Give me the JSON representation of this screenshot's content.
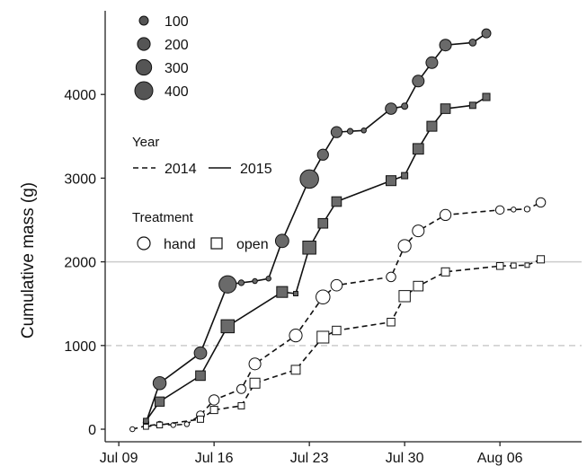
{
  "chart_data": {
    "type": "scatter",
    "title": "",
    "xlabel": "",
    "ylabel": "Cumulative mass (g)",
    "xlim": [
      "2015-07-08",
      "2015-08-12"
    ],
    "ylim": [
      -150,
      5000
    ],
    "x_ticks": [
      {
        "date": "2015-07-09",
        "label": "Jul 09"
      },
      {
        "date": "2015-07-16",
        "label": "Jul 16"
      },
      {
        "date": "2015-07-23",
        "label": "Jul 23"
      },
      {
        "date": "2015-07-30",
        "label": "Jul 30"
      },
      {
        "date": "2015-08-06",
        "label": "Aug 06"
      }
    ],
    "y_ticks": [
      0,
      1000,
      2000,
      3000,
      4000
    ],
    "reference_lines": [
      {
        "y": 1000,
        "style": "dashed",
        "color": "#cccccc"
      },
      {
        "y": 2000,
        "style": "solid",
        "color": "#cccccc"
      }
    ],
    "legend": {
      "position": "top-left",
      "size_legend": [
        {
          "value": 100,
          "label": "100"
        },
        {
          "value": 200,
          "label": "200"
        },
        {
          "value": 300,
          "label": "300"
        },
        {
          "value": 400,
          "label": "400"
        }
      ],
      "year_title": "Year",
      "year_items": [
        {
          "label": "2014",
          "style": "dashed"
        },
        {
          "label": "2015",
          "style": "solid"
        }
      ],
      "treatment_title": "Treatment",
      "treatment_items": [
        {
          "label": "hand",
          "marker": "circle"
        },
        {
          "label": "open",
          "marker": "square"
        }
      ]
    },
    "series": [
      {
        "year": "2015",
        "treatment": "hand",
        "line": "solid",
        "marker": "circle",
        "fill": "#6a6a6a",
        "points": [
          {
            "x": "2015-07-11",
            "y": 80,
            "size": 40
          },
          {
            "x": "2015-07-12",
            "y": 550,
            "size": 210
          },
          {
            "x": "2015-07-15",
            "y": 910,
            "size": 190
          },
          {
            "x": "2015-07-17",
            "y": 1730,
            "size": 370
          },
          {
            "x": "2015-07-18",
            "y": 1750,
            "size": 40
          },
          {
            "x": "2015-07-19",
            "y": 1770,
            "size": 30
          },
          {
            "x": "2015-07-20",
            "y": 1800,
            "size": 30
          },
          {
            "x": "2015-07-21",
            "y": 2250,
            "size": 220
          },
          {
            "x": "2015-07-23",
            "y": 2990,
            "size": 420
          },
          {
            "x": "2015-07-24",
            "y": 3280,
            "size": 150
          },
          {
            "x": "2015-07-25",
            "y": 3550,
            "size": 150
          },
          {
            "x": "2015-07-26",
            "y": 3560,
            "size": 40
          },
          {
            "x": "2015-07-27",
            "y": 3570,
            "size": 30
          },
          {
            "x": "2015-07-29",
            "y": 3830,
            "size": 160
          },
          {
            "x": "2015-07-30",
            "y": 3860,
            "size": 50
          },
          {
            "x": "2015-07-31",
            "y": 4160,
            "size": 170
          },
          {
            "x": "2015-08-01",
            "y": 4380,
            "size": 170
          },
          {
            "x": "2015-08-02",
            "y": 4590,
            "size": 170
          },
          {
            "x": "2015-08-04",
            "y": 4620,
            "size": 60
          },
          {
            "x": "2015-08-05",
            "y": 4730,
            "size": 100
          }
        ]
      },
      {
        "year": "2015",
        "treatment": "open",
        "line": "solid",
        "marker": "square",
        "fill": "#6a6a6a",
        "points": [
          {
            "x": "2015-07-11",
            "y": 100,
            "size": 40
          },
          {
            "x": "2015-07-12",
            "y": 330,
            "size": 130
          },
          {
            "x": "2015-07-15",
            "y": 640,
            "size": 140
          },
          {
            "x": "2015-07-17",
            "y": 1230,
            "size": 260
          },
          {
            "x": "2015-07-21",
            "y": 1640,
            "size": 180
          },
          {
            "x": "2015-07-22",
            "y": 1620,
            "size": 30
          },
          {
            "x": "2015-07-23",
            "y": 2170,
            "size": 260
          },
          {
            "x": "2015-07-24",
            "y": 2460,
            "size": 140
          },
          {
            "x": "2015-07-25",
            "y": 2720,
            "size": 140
          },
          {
            "x": "2015-07-29",
            "y": 2970,
            "size": 150
          },
          {
            "x": "2015-07-30",
            "y": 3030,
            "size": 60
          },
          {
            "x": "2015-07-31",
            "y": 3350,
            "size": 170
          },
          {
            "x": "2015-08-01",
            "y": 3620,
            "size": 150
          },
          {
            "x": "2015-08-02",
            "y": 3830,
            "size": 140
          },
          {
            "x": "2015-08-04",
            "y": 3870,
            "size": 60
          },
          {
            "x": "2015-08-05",
            "y": 3970,
            "size": 80
          }
        ]
      },
      {
        "year": "2014",
        "treatment": "hand",
        "line": "dashed",
        "marker": "circle",
        "fill": "#ffffff",
        "points": [
          {
            "x": "2015-07-10",
            "y": 0,
            "size": 30
          },
          {
            "x": "2015-07-11",
            "y": 40,
            "size": 30
          },
          {
            "x": "2015-07-12",
            "y": 60,
            "size": 40
          },
          {
            "x": "2015-07-13",
            "y": 50,
            "size": 30
          },
          {
            "x": "2015-07-14",
            "y": 60,
            "size": 30
          },
          {
            "x": "2015-07-15",
            "y": 170,
            "size": 80
          },
          {
            "x": "2015-07-16",
            "y": 350,
            "size": 130
          },
          {
            "x": "2015-07-18",
            "y": 480,
            "size": 100
          },
          {
            "x": "2015-07-19",
            "y": 780,
            "size": 170
          },
          {
            "x": "2015-07-22",
            "y": 1120,
            "size": 200
          },
          {
            "x": "2015-07-24",
            "y": 1580,
            "size": 240
          },
          {
            "x": "2015-07-25",
            "y": 1720,
            "size": 160
          },
          {
            "x": "2015-07-29",
            "y": 1820,
            "size": 110
          },
          {
            "x": "2015-07-30",
            "y": 2190,
            "size": 200
          },
          {
            "x": "2015-07-31",
            "y": 2370,
            "size": 170
          },
          {
            "x": "2015-08-02",
            "y": 2560,
            "size": 150
          },
          {
            "x": "2015-08-06",
            "y": 2620,
            "size": 90
          },
          {
            "x": "2015-08-07",
            "y": 2625,
            "size": 30
          },
          {
            "x": "2015-08-08",
            "y": 2630,
            "size": 40
          },
          {
            "x": "2015-08-09",
            "y": 2710,
            "size": 110
          }
        ]
      },
      {
        "year": "2014",
        "treatment": "open",
        "line": "dashed",
        "marker": "square",
        "fill": "#ffffff",
        "points": [
          {
            "x": "2015-07-11",
            "y": 30,
            "size": 40
          },
          {
            "x": "2015-07-12",
            "y": 50,
            "size": 50
          },
          {
            "x": "2015-07-15",
            "y": 120,
            "size": 60
          },
          {
            "x": "2015-07-16",
            "y": 230,
            "size": 80
          },
          {
            "x": "2015-07-18",
            "y": 280,
            "size": 60
          },
          {
            "x": "2015-07-19",
            "y": 550,
            "size": 150
          },
          {
            "x": "2015-07-22",
            "y": 710,
            "size": 120
          },
          {
            "x": "2015-07-24",
            "y": 1100,
            "size": 210
          },
          {
            "x": "2015-07-25",
            "y": 1180,
            "size": 110
          },
          {
            "x": "2015-07-29",
            "y": 1280,
            "size": 90
          },
          {
            "x": "2015-07-30",
            "y": 1590,
            "size": 190
          },
          {
            "x": "2015-07-31",
            "y": 1710,
            "size": 140
          },
          {
            "x": "2015-08-02",
            "y": 1880,
            "size": 100
          },
          {
            "x": "2015-08-06",
            "y": 1950,
            "size": 70
          },
          {
            "x": "2015-08-07",
            "y": 1955,
            "size": 40
          },
          {
            "x": "2015-08-08",
            "y": 1960,
            "size": 30
          },
          {
            "x": "2015-08-09",
            "y": 2030,
            "size": 80
          }
        ]
      }
    ]
  }
}
